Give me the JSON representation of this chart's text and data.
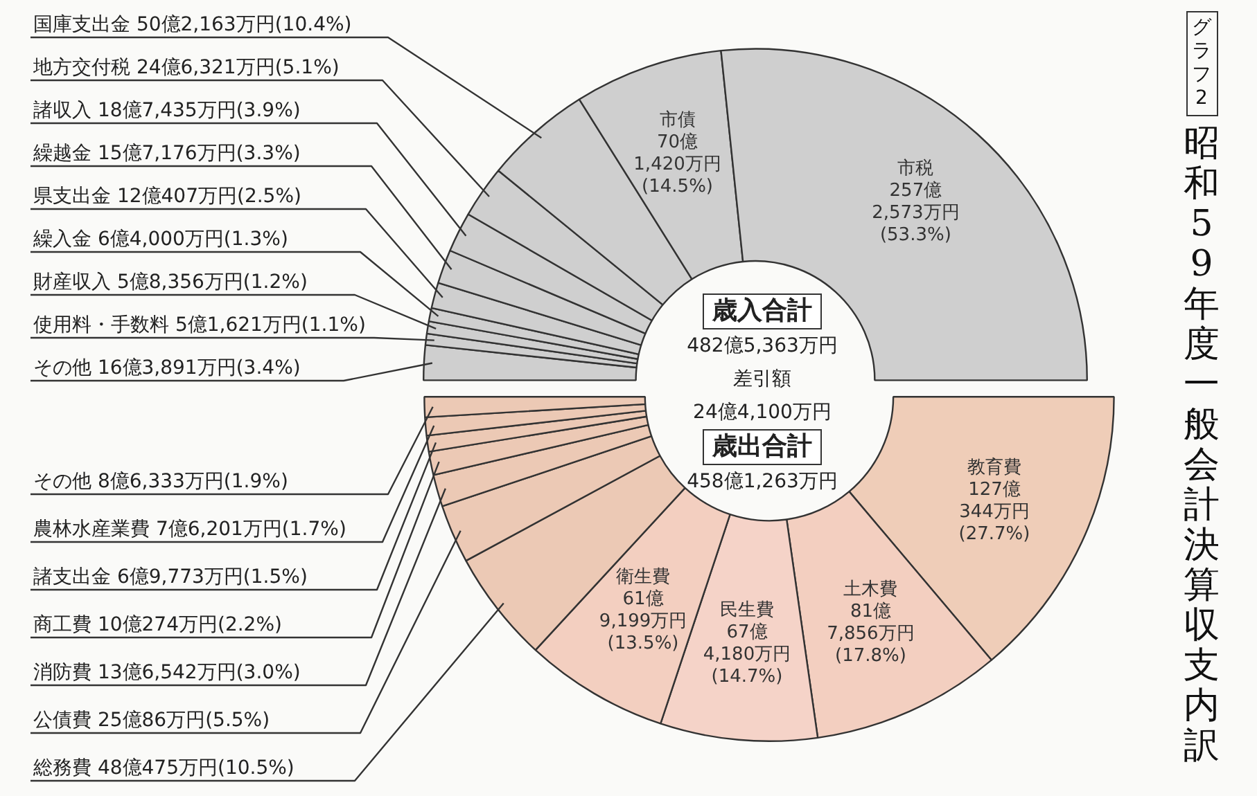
{
  "chart_data": [
    {
      "type": "donut",
      "title": "昭和59年度一般会計決算収支内訳",
      "subtitle": "グラフ2",
      "categories": [
        "その他",
        "使用料・手数料",
        "財産収入",
        "繰入金",
        "県支出金",
        "繰越金",
        "諸収入",
        "地方交付税",
        "国庫支出金",
        "市債",
        "市税"
      ],
      "values": [
        3.4,
        1.1,
        1.2,
        1.3,
        2.5,
        3.3,
        3.9,
        5.1,
        10.4,
        14.5,
        53.3
      ],
      "value_labels": [
        "16億3,891万円(3.4%)",
        "5億1,621万円(1.1%)",
        "5億8,356万円(1.2%)",
        "6億4,000万円(1.3%)",
        "12億407万円(2.5%)",
        "15億7,176万円(3.3%)",
        "18億7,435万円(3.9%)",
        "24億6,321万円(5.1%)",
        "50億2,163万円(10.4%)",
        "70億1,420万円(14.5%)",
        "257億2,573万円(53.3%)"
      ],
      "colors": [
        "#cfcfcf",
        "#cfcfcf",
        "#cfcfcf",
        "#cfcfcf",
        "#cfcfcf",
        "#cfcfcf",
        "#cfcfcf",
        "#cfcfcf",
        "#cfcfcf",
        "#cfcfcf",
        "#cfcfcf"
      ],
      "annotations": [
        "歳入合計",
        "482億5,363万円",
        "差引額",
        "24億4,100万円"
      ],
      "legend": false
    },
    {
      "type": "donut",
      "categories": [
        "教育費",
        "土木費",
        "民生費",
        "衛生費",
        "総務費",
        "公債費",
        "消防費",
        "商工費",
        "諸支出金",
        "農林水産業費",
        "その他"
      ],
      "values": [
        27.7,
        17.8,
        14.7,
        13.5,
        10.5,
        5.5,
        3.0,
        2.2,
        1.5,
        1.7,
        1.9
      ],
      "value_labels": [
        "127億344万円(27.7%)",
        "81億7,856万円(17.8%)",
        "67億4,180万円(14.7%)",
        "61億9,199万円(13.5%)",
        "48億475万円(10.5%)",
        "25億86万円(5.5%)",
        "13億6,542万円(3.0%)",
        "10億274万円(2.2%)",
        "6億9,773万円(1.5%)",
        "7億6,201万円(1.7%)",
        "8億6,333万円(1.9%)"
      ],
      "colors": [
        "#efcdb8",
        "#f3cfc0",
        "#f5d3c8",
        "#f3cfc0",
        "#ecc9b5",
        "#ecc9b5",
        "#ecc9b5",
        "#ecc9b5",
        "#ecc9b5",
        "#ecc9b5",
        "#ecc9b5"
      ],
      "annotations": [
        "歳出合計",
        "458億1,263万円"
      ],
      "legend": false
    }
  ]
}
